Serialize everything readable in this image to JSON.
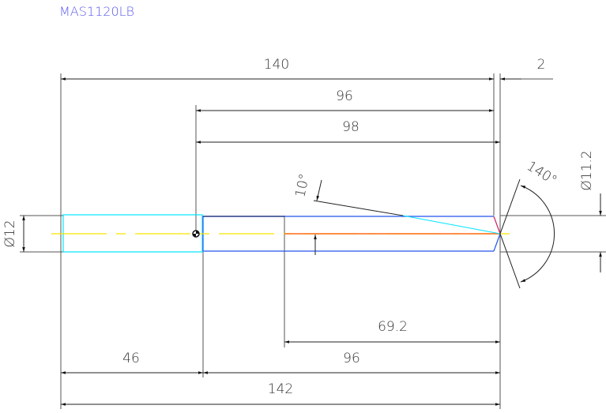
{
  "title": "MAS1120LB",
  "dimensions": {
    "total_length_top": "140",
    "tip_offset": "2",
    "length_96_top": "96",
    "length_98": "98",
    "angle_10": "10°",
    "point_angle": "140°",
    "diameter_shank": "Ø12",
    "diameter_body": "Ø11.2",
    "length_69_2": "69.2",
    "length_96_bottom": "96",
    "length_46": "46",
    "total_length_bottom": "142"
  },
  "colors": {
    "title": "#5b5bf0",
    "shank": "#00e5ff",
    "body": "#2255ee",
    "centerline": "#f5e400",
    "flute": "#ff6a1a",
    "chamfer": "#cc2266",
    "dimension": "#222222"
  }
}
